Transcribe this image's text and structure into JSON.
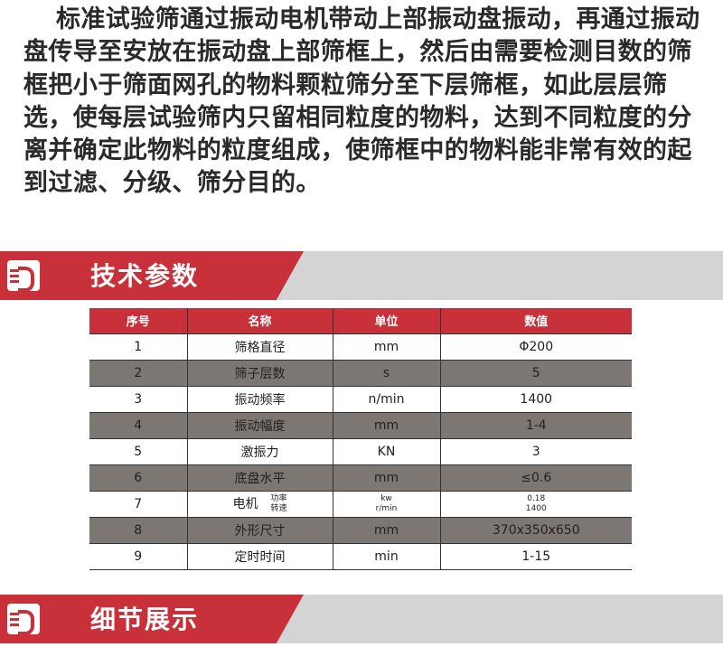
{
  "intro": "标准试验筛通过振动电机带动上部振动盘振动，再通过振动盘传导至安放在振动盘上部筛框上，然后由需要检测目数的筛框把小于筛面网孔的物料颗粒筛分至下层筛框，如此层层筛选，使每层试验筛内只留相同粒度的物料，达到不同粒度的分离并确定此物料的粒度组成，使筛框中的物料能非常有效的起到过滤、分级、筛分目的。",
  "section1": "技术参数",
  "section2": "细节展示",
  "colors": {
    "accent": "#c8313a",
    "row_alt": "#7d7773",
    "band_gray": "#d4d4d4"
  },
  "table": {
    "headers": [
      "序号",
      "名称",
      "单位",
      "数值"
    ],
    "rows": [
      [
        "1",
        "筛格直径",
        "mm",
        "Φ200"
      ],
      [
        "2",
        "筛子层数",
        "s",
        "5"
      ],
      [
        "3",
        "振动频率",
        "n/min",
        "1400"
      ],
      [
        "4",
        "振动幅度",
        "mm",
        "1-4"
      ],
      [
        "5",
        "激振力",
        "KN",
        "3"
      ],
      [
        "6",
        "底盘水平",
        "mm",
        "≤0.6"
      ],
      [
        "7",
        "电机",
        "",
        ""
      ],
      [
        "8",
        "外形尺寸",
        "mm",
        "370x350x650"
      ],
      [
        "9",
        "定时时间",
        "min",
        "1-15"
      ]
    ],
    "motor": {
      "sub1": "功率",
      "sub2": "转速",
      "unit1": "kw",
      "unit2": "r/min",
      "val1": "0.18",
      "val2": "1400"
    }
  }
}
